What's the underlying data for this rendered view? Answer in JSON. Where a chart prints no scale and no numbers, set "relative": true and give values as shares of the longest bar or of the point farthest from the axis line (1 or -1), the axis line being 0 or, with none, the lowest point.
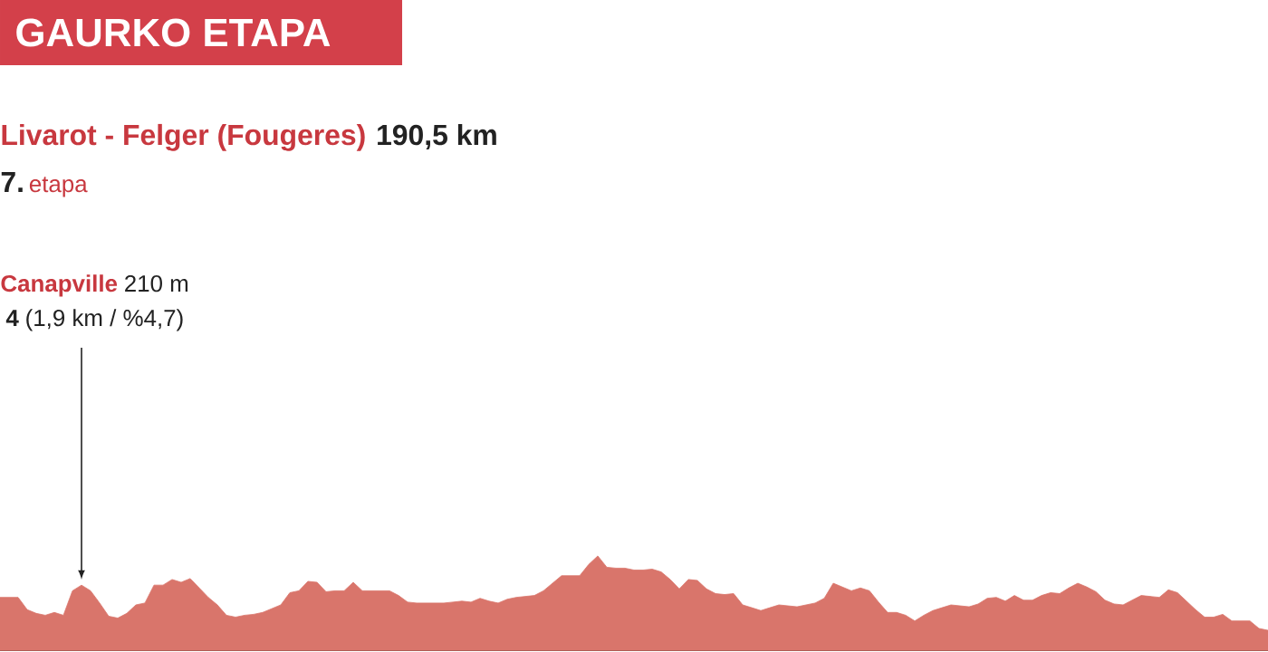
{
  "chart_data": {
    "type": "area",
    "relative": true,
    "title": "GAURKO ETAPA",
    "subtitle": "Livarot - Felger (Fougeres)",
    "annotations": [
      "190,5 km",
      "7.",
      "etapa",
      "Canapville",
      "210 m",
      "4",
      "(1,9 km / %4,7)"
    ],
    "tick_labels": false,
    "color": "#d9756b",
    "categories": [
      null,
      null,
      null,
      null,
      null,
      null,
      null,
      null,
      null,
      null,
      null,
      null,
      null,
      null,
      null,
      null,
      null,
      null,
      null,
      null,
      null,
      null,
      null,
      null,
      null,
      null,
      null,
      null,
      null,
      null,
      null,
      null,
      null,
      null,
      null,
      null,
      null,
      null,
      null,
      null,
      null,
      null,
      null,
      null,
      null,
      null,
      null,
      null,
      null,
      null,
      null,
      null,
      null,
      null,
      null,
      null,
      null,
      null,
      null,
      null,
      null,
      null,
      null,
      null,
      null,
      null,
      null,
      null,
      null,
      null,
      null,
      null,
      null,
      null,
      null,
      null,
      null,
      null,
      null,
      null,
      null,
      null,
      null,
      null,
      null,
      null,
      null,
      null,
      null,
      null,
      null,
      null,
      null,
      null,
      null,
      null,
      null,
      null,
      null,
      null,
      null,
      null,
      null,
      null,
      null,
      null,
      null,
      null,
      null,
      null,
      null,
      null,
      null,
      null,
      null,
      null,
      null,
      null,
      null,
      null,
      null,
      null,
      null,
      null,
      null,
      null,
      null,
      null,
      null,
      null,
      null,
      null,
      null,
      null,
      null,
      null,
      null,
      null,
      null,
      null,
      null
    ],
    "values": [
      0.56,
      0.56,
      0.56,
      0.43,
      0.39,
      0.37,
      0.4,
      0.37,
      0.63,
      0.69,
      0.63,
      0.5,
      0.36,
      0.34,
      0.39,
      0.48,
      0.5,
      0.69,
      0.69,
      0.75,
      0.72,
      0.76,
      0.66,
      0.56,
      0.48,
      0.37,
      0.35,
      0.37,
      0.38,
      0.4,
      0.44,
      0.48,
      0.61,
      0.63,
      0.73,
      0.72,
      0.62,
      0.63,
      0.63,
      0.72,
      0.63,
      0.63,
      0.63,
      0.63,
      0.58,
      0.51,
      0.5,
      0.5,
      0.5,
      0.5,
      0.51,
      0.52,
      0.51,
      0.55,
      0.52,
      0.5,
      0.54,
      0.56,
      0.57,
      0.58,
      0.63,
      0.71,
      0.79,
      0.79,
      0.79,
      0.91,
      1.0,
      0.88,
      0.87,
      0.87,
      0.85,
      0.85,
      0.86,
      0.83,
      0.75,
      0.65,
      0.75,
      0.74,
      0.65,
      0.6,
      0.59,
      0.6,
      0.48,
      0.45,
      0.42,
      0.45,
      0.48,
      0.47,
      0.46,
      0.48,
      0.5,
      0.55,
      0.71,
      0.67,
      0.63,
      0.66,
      0.63,
      0.51,
      0.4,
      0.4,
      0.37,
      0.31,
      0.37,
      0.42,
      0.45,
      0.48,
      0.47,
      0.46,
      0.49,
      0.55,
      0.56,
      0.52,
      0.58,
      0.53,
      0.53,
      0.58,
      0.61,
      0.6,
      0.66,
      0.71,
      0.67,
      0.62,
      0.53,
      0.49,
      0.48,
      0.53,
      0.58,
      0.57,
      0.56,
      0.64,
      0.61,
      0.52,
      0.43,
      0.35,
      0.35,
      0.38,
      0.31,
      0.31,
      0.31,
      0.23,
      0.21
    ]
  }
}
